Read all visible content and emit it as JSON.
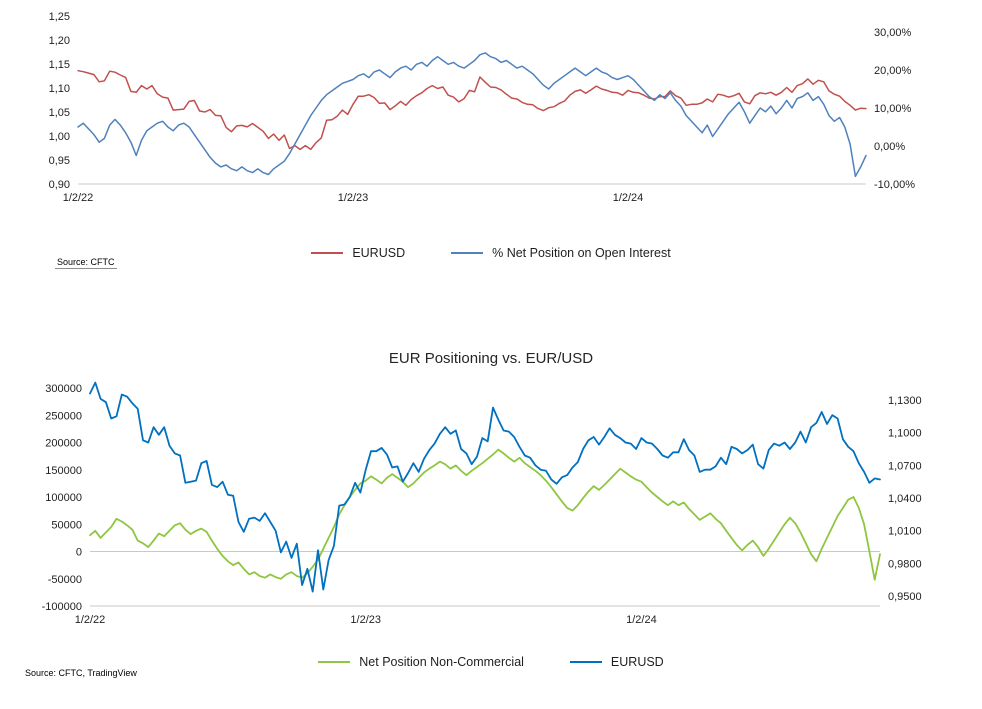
{
  "chart_data": [
    {
      "type": "line",
      "title": "",
      "source": "Source: CFTC",
      "n_points": 150,
      "x_tick_labels": [
        "1/2/22",
        "1/2/23",
        "1/2/24"
      ],
      "x_tick_indices": [
        0,
        52,
        104
      ],
      "grid": "bottom-axis-only",
      "legend_position": "bottom",
      "left_axis": {
        "min": 0.9,
        "max": 1.25,
        "tick_values": [
          1.25,
          1.2,
          1.15,
          1.1,
          1.05,
          1.0,
          0.95,
          0.9
        ],
        "tick_labels": [
          "1,25",
          "1,20",
          "1,15",
          "1,10",
          "1,05",
          "1,00",
          "0,95",
          "0,90"
        ]
      },
      "right_axis": {
        "min": -10,
        "max": 30,
        "tick_values": [
          30,
          20,
          10,
          0,
          -10
        ],
        "tick_labels": [
          "30,00%",
          "20,00%",
          "10,00%",
          "0,00%",
          "-10,00%"
        ]
      },
      "series": [
        {
          "name": "EURUSD",
          "axis": "left",
          "color": "#c0504d",
          "values": [
            1.136,
            1.134,
            1.131,
            1.128,
            1.113,
            1.115,
            1.135,
            1.133,
            1.127,
            1.122,
            1.093,
            1.091,
            1.105,
            1.098,
            1.105,
            1.088,
            1.081,
            1.079,
            1.054,
            1.055,
            1.056,
            1.072,
            1.074,
            1.052,
            1.05,
            1.055,
            1.043,
            1.042,
            1.018,
            1.009,
            1.021,
            1.022,
            1.019,
            1.026,
            1.018,
            1.01,
            0.995,
            1.004,
            0.991,
            1.002,
            0.974,
            0.98,
            0.972,
            0.98,
            0.972,
            0.986,
            0.996,
            1.033,
            1.034,
            1.041,
            1.054,
            1.045,
            1.066,
            1.083,
            1.083,
            1.086,
            1.08,
            1.068,
            1.069,
            1.055,
            1.063,
            1.072,
            1.064,
            1.076,
            1.084,
            1.09,
            1.099,
            1.105,
            1.099,
            1.102,
            1.085,
            1.081,
            1.071,
            1.078,
            1.095,
            1.092,
            1.123,
            1.112,
            1.102,
            1.101,
            1.096,
            1.087,
            1.079,
            1.077,
            1.07,
            1.066,
            1.065,
            1.057,
            1.053,
            1.059,
            1.061,
            1.068,
            1.073,
            1.085,
            1.093,
            1.096,
            1.089,
            1.096,
            1.104,
            1.098,
            1.095,
            1.091,
            1.09,
            1.085,
            1.095,
            1.091,
            1.09,
            1.085,
            1.079,
            1.077,
            1.082,
            1.082,
            1.094,
            1.084,
            1.079,
            1.064,
            1.066,
            1.066,
            1.069,
            1.077,
            1.071,
            1.087,
            1.085,
            1.081,
            1.084,
            1.089,
            1.071,
            1.067,
            1.084,
            1.09,
            1.088,
            1.091,
            1.085,
            1.091,
            1.101,
            1.091,
            1.105,
            1.109,
            1.119,
            1.108,
            1.116,
            1.113,
            1.094,
            1.087,
            1.083,
            1.072,
            1.064,
            1.054,
            1.058,
            1.057
          ]
        },
        {
          "name": "% Net Position on Open Interest",
          "axis": "right",
          "color": "#4f81bd",
          "values": [
            5.0,
            6.0,
            4.5,
            3.0,
            1.0,
            2.0,
            5.5,
            7.0,
            5.5,
            3.5,
            1.0,
            -2.5,
            1.5,
            4.0,
            5.0,
            6.0,
            6.5,
            5.0,
            4.0,
            5.5,
            6.0,
            5.0,
            3.0,
            1.0,
            -1.0,
            -3.0,
            -4.5,
            -5.5,
            -5.0,
            -6.0,
            -6.5,
            -5.5,
            -6.5,
            -7.0,
            -6.0,
            -7.0,
            -7.5,
            -6.0,
            -5.0,
            -4.0,
            -2.0,
            0.5,
            3.0,
            5.5,
            8.0,
            10.0,
            12.0,
            13.5,
            14.5,
            15.5,
            16.5,
            17.0,
            17.5,
            18.5,
            19.0,
            18.0,
            19.5,
            20.0,
            19.0,
            18.0,
            19.5,
            20.5,
            21.0,
            20.0,
            21.5,
            22.0,
            21.0,
            22.5,
            23.5,
            22.5,
            21.5,
            22.0,
            21.0,
            20.5,
            21.5,
            22.5,
            24.0,
            24.5,
            23.5,
            23.0,
            22.0,
            22.5,
            21.5,
            20.5,
            21.0,
            20.0,
            19.0,
            17.5,
            16.0,
            15.0,
            16.5,
            17.5,
            18.5,
            19.5,
            20.5,
            19.5,
            18.5,
            19.5,
            20.5,
            19.5,
            19.0,
            18.0,
            17.5,
            18.0,
            18.5,
            17.5,
            16.0,
            14.5,
            13.0,
            12.0,
            13.5,
            12.5,
            14.0,
            12.0,
            10.5,
            8.0,
            6.5,
            5.0,
            3.5,
            5.5,
            2.5,
            4.5,
            6.5,
            8.5,
            10.0,
            11.5,
            9.0,
            6.0,
            8.0,
            10.0,
            9.0,
            10.5,
            8.5,
            10.0,
            12.0,
            10.0,
            12.5,
            13.0,
            14.0,
            12.0,
            13.0,
            11.0,
            8.0,
            6.5,
            7.5,
            5.0,
            0.5,
            -8.0,
            -5.5,
            -2.5
          ]
        }
      ]
    },
    {
      "type": "line",
      "title": "EUR Positioning vs. EUR/USD",
      "source": "Source: CFTC, TradingView",
      "n_points": 150,
      "x_tick_labels": [
        "1/2/22",
        "1/2/23",
        "1/2/24"
      ],
      "x_tick_indices": [
        0,
        52,
        104
      ],
      "grid": "zero-line-and-bottom-axis",
      "legend_position": "bottom",
      "left_axis": {
        "min": -100000,
        "max": 300000,
        "zero_line": 0,
        "tick_values": [
          300000,
          250000,
          200000,
          150000,
          100000,
          50000,
          0,
          -50000,
          -100000
        ],
        "tick_labels": [
          "300000",
          "250000",
          "200000",
          "150000",
          "100000",
          "50000",
          "0",
          "-50000",
          "-100000"
        ]
      },
      "right_axis": {
        "min": 0.95,
        "max": 1.13,
        "tick_values": [
          1.13,
          1.1,
          1.07,
          1.04,
          1.01,
          0.98,
          0.95
        ],
        "tick_labels": [
          "1,1300",
          "1,1000",
          "1,0700",
          "1,0400",
          "1,0100",
          "0,9800",
          "0,9500"
        ]
      },
      "series": [
        {
          "name": "Net Position Non-Commercial",
          "axis": "left",
          "color": "#8ec641",
          "values": [
            30000,
            38000,
            25000,
            35000,
            45000,
            60000,
            55000,
            48000,
            40000,
            20000,
            15000,
            8000,
            20000,
            33000,
            28000,
            38000,
            48000,
            52000,
            40000,
            32000,
            38000,
            42000,
            36000,
            20000,
            5000,
            -8000,
            -18000,
            -25000,
            -20000,
            -32000,
            -42000,
            -38000,
            -45000,
            -48000,
            -42000,
            -47000,
            -50000,
            -42000,
            -38000,
            -45000,
            -48000,
            -40000,
            -28000,
            -15000,
            5000,
            25000,
            45000,
            68000,
            85000,
            100000,
            113000,
            125000,
            130000,
            138000,
            132000,
            125000,
            135000,
            142000,
            135000,
            128000,
            118000,
            125000,
            135000,
            145000,
            152000,
            158000,
            165000,
            160000,
            152000,
            158000,
            148000,
            140000,
            148000,
            155000,
            162000,
            170000,
            178000,
            187000,
            180000,
            172000,
            165000,
            172000,
            162000,
            155000,
            148000,
            140000,
            130000,
            118000,
            105000,
            92000,
            80000,
            75000,
            85000,
            98000,
            110000,
            120000,
            113000,
            122000,
            132000,
            142000,
            152000,
            145000,
            138000,
            132000,
            128000,
            118000,
            108000,
            100000,
            92000,
            85000,
            92000,
            85000,
            90000,
            78000,
            68000,
            58000,
            64000,
            70000,
            60000,
            52000,
            38000,
            25000,
            12000,
            2000,
            12000,
            20000,
            8000,
            -8000,
            5000,
            20000,
            35000,
            50000,
            62000,
            52000,
            35000,
            15000,
            -5000,
            -18000,
            5000,
            25000,
            45000,
            65000,
            80000,
            95000,
            100000,
            80000,
            50000,
            0,
            -52000,
            -5000
          ]
        },
        {
          "name": "EURUSD",
          "axis": "right",
          "color": "#0070c0",
          "values": [
            1.136,
            1.146,
            1.131,
            1.128,
            1.113,
            1.115,
            1.135,
            1.133,
            1.127,
            1.122,
            1.093,
            1.091,
            1.105,
            1.098,
            1.105,
            1.088,
            1.081,
            1.079,
            1.054,
            1.055,
            1.056,
            1.072,
            1.074,
            1.052,
            1.05,
            1.055,
            1.043,
            1.042,
            1.018,
            1.009,
            1.021,
            1.022,
            1.019,
            1.026,
            1.018,
            1.01,
            0.99,
            1.0,
            0.985,
            0.998,
            0.96,
            0.975,
            0.954,
            0.992,
            0.956,
            0.983,
            0.996,
            1.033,
            1.034,
            1.041,
            1.054,
            1.045,
            1.066,
            1.083,
            1.083,
            1.086,
            1.08,
            1.068,
            1.069,
            1.055,
            1.063,
            1.072,
            1.064,
            1.076,
            1.084,
            1.09,
            1.099,
            1.105,
            1.099,
            1.102,
            1.085,
            1.081,
            1.071,
            1.078,
            1.095,
            1.092,
            1.123,
            1.112,
            1.102,
            1.101,
            1.096,
            1.087,
            1.079,
            1.077,
            1.07,
            1.066,
            1.065,
            1.057,
            1.053,
            1.059,
            1.061,
            1.068,
            1.073,
            1.085,
            1.093,
            1.096,
            1.089,
            1.096,
            1.104,
            1.098,
            1.095,
            1.091,
            1.09,
            1.085,
            1.095,
            1.091,
            1.09,
            1.085,
            1.079,
            1.077,
            1.082,
            1.082,
            1.094,
            1.084,
            1.079,
            1.064,
            1.066,
            1.066,
            1.069,
            1.077,
            1.071,
            1.087,
            1.085,
            1.081,
            1.084,
            1.089,
            1.071,
            1.067,
            1.084,
            1.09,
            1.088,
            1.091,
            1.085,
            1.091,
            1.101,
            1.091,
            1.105,
            1.109,
            1.119,
            1.108,
            1.116,
            1.113,
            1.094,
            1.087,
            1.083,
            1.072,
            1.064,
            1.054,
            1.058,
            1.057
          ]
        }
      ]
    }
  ]
}
